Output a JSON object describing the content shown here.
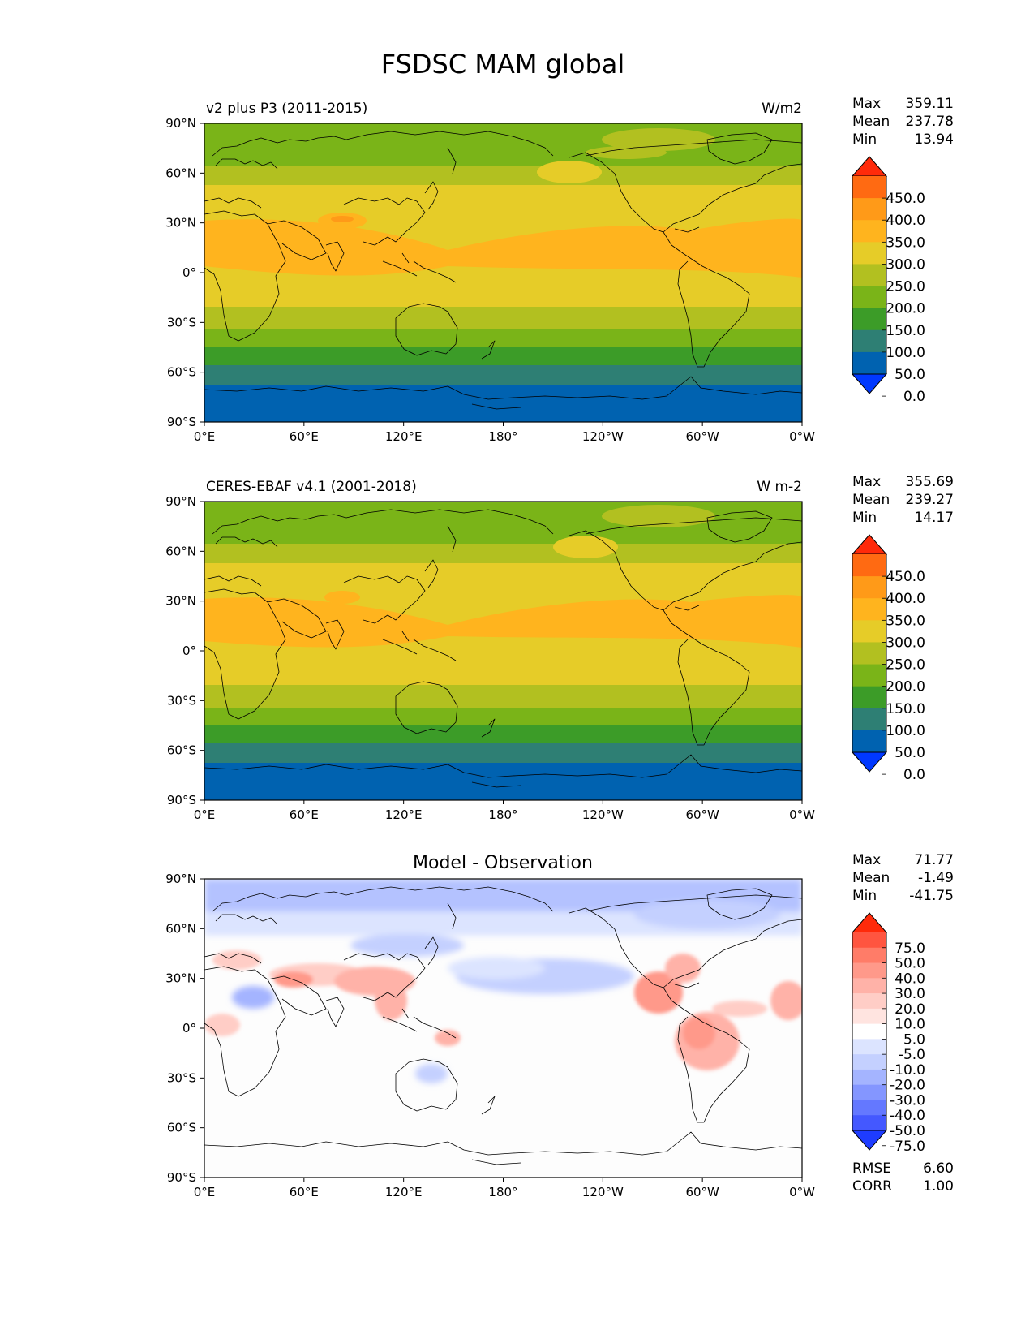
{
  "title": "FSDSC MAM global",
  "x_ticks": [
    "0°E",
    "60°E",
    "120°E",
    "180°",
    "120°W",
    "60°W",
    "0°W"
  ],
  "y_ticks": [
    "90°N",
    "60°N",
    "30°N",
    "0°",
    "30°S",
    "60°S",
    "90°S"
  ],
  "panels": [
    {
      "title_left": "v2 plus P3 (2011-2015)",
      "title_center": "",
      "units": "W/m2",
      "stats": [
        {
          "label": "Max",
          "value": "359.11"
        },
        {
          "label": "Mean",
          "value": "237.78"
        },
        {
          "label": "Min",
          "value": "13.94"
        }
      ],
      "extra_stats": []
    },
    {
      "title_left": "CERES-EBAF v4.1 (2001-2018)",
      "title_center": "",
      "units": "W m-2",
      "stats": [
        {
          "label": "Max",
          "value": "355.69"
        },
        {
          "label": "Mean",
          "value": "239.27"
        },
        {
          "label": "Min",
          "value": "14.17"
        }
      ],
      "extra_stats": []
    },
    {
      "title_left": "",
      "title_center": "Model - Observation",
      "units": "",
      "stats": [
        {
          "label": "Max",
          "value": "71.77"
        },
        {
          "label": "Mean",
          "value": "-1.49"
        },
        {
          "label": "Min",
          "value": "-41.75"
        }
      ],
      "extra_stats": [
        {
          "label": "RMSE",
          "value": "6.60"
        },
        {
          "label": "CORR",
          "value": "1.00"
        }
      ]
    }
  ],
  "colorbars": {
    "field": {
      "labels": [
        "450.0",
        "400.0",
        "350.0",
        "300.0",
        "250.0",
        "200.0",
        "150.0",
        "100.0",
        "50.0",
        "0.0"
      ],
      "colors": [
        "#ff2a0a",
        "#ff6a12",
        "#ff9a18",
        "#ffb41e",
        "#e6cc28",
        "#b2c020",
        "#7ab418",
        "#3c9c28",
        "#2e7f74",
        "#0062b0",
        "#0038ff"
      ]
    },
    "diff": {
      "labels": [
        "75.0",
        "50.0",
        "40.0",
        "30.0",
        "20.0",
        "10.0",
        "5.0",
        "-5.0",
        "-10.0",
        "-20.0",
        "-30.0",
        "-40.0",
        "-50.0",
        "-75.0"
      ],
      "colors": [
        "#ff2a0a",
        "#ff5540",
        "#ff7c68",
        "#ff998a",
        "#ffb2a8",
        "#ffcdc6",
        "#ffe4e0",
        "#ffffff",
        "#dce4ff",
        "#c4d0ff",
        "#a4b4ff",
        "#8496ff",
        "#6478ff",
        "#4458ff",
        "#1e3cff"
      ]
    }
  },
  "chart_data": [
    {
      "type": "heatmap",
      "title": "v2 plus P3 (2011-2015)",
      "units": "W/m2",
      "xlim": [
        0,
        360
      ],
      "ylim": [
        -90,
        90
      ],
      "zonal_mean_bands": [
        {
          "lat": [
            75,
            90
          ],
          "value_range": [
            150,
            200
          ]
        },
        {
          "lat": [
            60,
            75
          ],
          "value_range": [
            150,
            200
          ]
        },
        {
          "lat": [
            45,
            60
          ],
          "value_range": [
            200,
            250
          ]
        },
        {
          "lat": [
            20,
            45
          ],
          "value_range": [
            250,
            300
          ]
        },
        {
          "lat": [
            -10,
            20
          ],
          "value_range": [
            300,
            350
          ]
        },
        {
          "lat": [
            -25,
            -10
          ],
          "value_range": [
            250,
            300
          ]
        },
        {
          "lat": [
            -37,
            -25
          ],
          "value_range": [
            200,
            250
          ]
        },
        {
          "lat": [
            -47,
            -37
          ],
          "value_range": [
            150,
            200
          ]
        },
        {
          "lat": [
            -60,
            -47
          ],
          "value_range": [
            100,
            150
          ]
        },
        {
          "lat": [
            -70,
            -60
          ],
          "value_range": [
            50,
            100
          ]
        },
        {
          "lat": [
            -90,
            -70
          ],
          "value_range": [
            0,
            50
          ]
        }
      ],
      "colorbar_levels": [
        0,
        50,
        100,
        150,
        200,
        250,
        300,
        350,
        400,
        450
      ],
      "max": 359.11,
      "mean": 237.78,
      "min": 13.94
    },
    {
      "type": "heatmap",
      "title": "CERES-EBAF v4.1 (2001-2018)",
      "units": "W m-2",
      "xlim": [
        0,
        360
      ],
      "ylim": [
        -90,
        90
      ],
      "zonal_mean_bands": [
        {
          "lat": [
            75,
            90
          ],
          "value_range": [
            150,
            200
          ]
        },
        {
          "lat": [
            60,
            75
          ],
          "value_range": [
            150,
            200
          ]
        },
        {
          "lat": [
            45,
            60
          ],
          "value_range": [
            200,
            250
          ]
        },
        {
          "lat": [
            20,
            45
          ],
          "value_range": [
            250,
            300
          ]
        },
        {
          "lat": [
            -10,
            20
          ],
          "value_range": [
            300,
            350
          ]
        },
        {
          "lat": [
            -25,
            -10
          ],
          "value_range": [
            250,
            300
          ]
        },
        {
          "lat": [
            -37,
            -25
          ],
          "value_range": [
            200,
            250
          ]
        },
        {
          "lat": [
            -47,
            -37
          ],
          "value_range": [
            150,
            200
          ]
        },
        {
          "lat": [
            -60,
            -47
          ],
          "value_range": [
            100,
            150
          ]
        },
        {
          "lat": [
            -70,
            -60
          ],
          "value_range": [
            50,
            100
          ]
        },
        {
          "lat": [
            -90,
            -70
          ],
          "value_range": [
            0,
            50
          ]
        }
      ],
      "colorbar_levels": [
        0,
        50,
        100,
        150,
        200,
        250,
        300,
        350,
        400,
        450
      ],
      "max": 355.69,
      "mean": 239.27,
      "min": 14.17
    },
    {
      "type": "heatmap",
      "title": "Model - Observation",
      "xlim": [
        0,
        360
      ],
      "ylim": [
        -90,
        90
      ],
      "colorbar_levels": [
        -75,
        -50,
        -40,
        -30,
        -20,
        -10,
        -5,
        5,
        10,
        20,
        30,
        40,
        50,
        75
      ],
      "max": 71.77,
      "mean": -1.49,
      "min": -41.75,
      "rmse": 6.6,
      "corr": 1.0
    }
  ]
}
